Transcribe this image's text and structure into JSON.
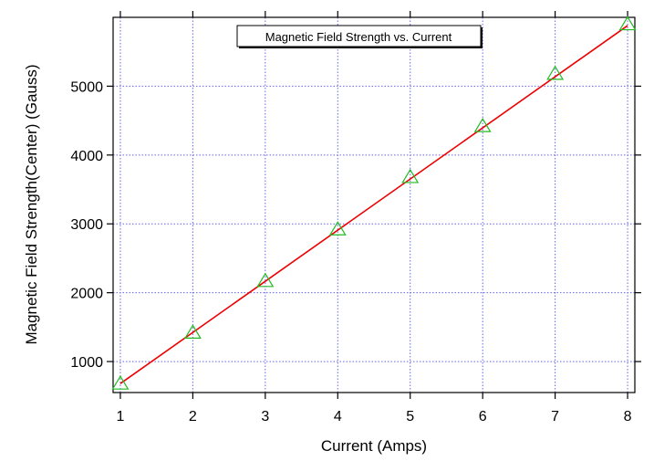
{
  "chart_data": {
    "type": "scatter",
    "title": "Magnetic Field Strength vs. Current",
    "xlabel": "Current (Amps)",
    "ylabel": "Magnetic Field Strength(Center) (Gauss)",
    "xlim": [
      0.9,
      8.1
    ],
    "ylim": [
      550,
      6000
    ],
    "xticks": [
      1,
      2,
      3,
      4,
      5,
      6,
      7,
      8
    ],
    "yticks": [
      1000,
      2000,
      3000,
      4000,
      5000
    ],
    "grid": true,
    "series": [
      {
        "marker": "triangle",
        "x": [
          1,
          2,
          3,
          4,
          5,
          6,
          7,
          8
        ],
        "y": [
          680,
          1420,
          2170,
          2920,
          3680,
          4420,
          5180,
          5900
        ],
        "color": "#22bb22"
      }
    ],
    "fit_line": {
      "x": [
        1,
        8
      ],
      "y": [
        680,
        5880
      ],
      "color": "#ee0000"
    },
    "grid_color": "#6666ee"
  }
}
